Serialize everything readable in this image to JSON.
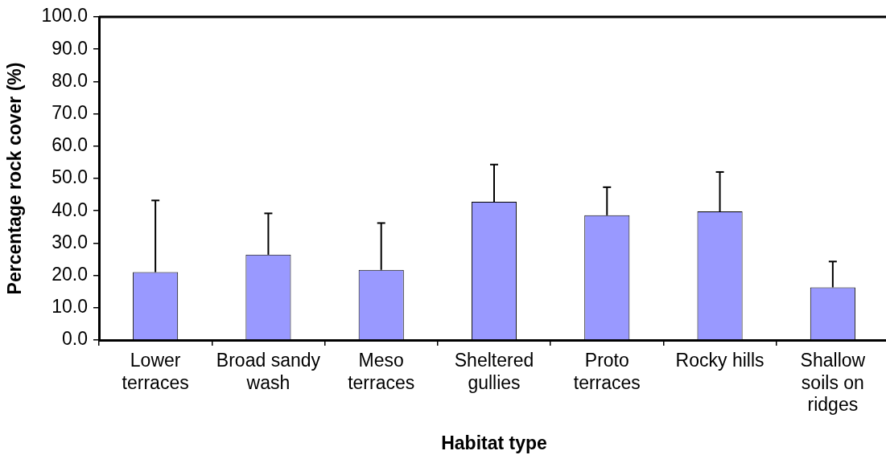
{
  "chart_data": {
    "type": "bar",
    "xlabel": "Habitat type",
    "ylabel": "Percentage rock cover (%)",
    "categories": [
      "Lower terraces",
      "Broad sandy wash",
      "Meso terraces",
      "Sheltered gullies",
      "Proto terraces",
      "Rocky hills",
      "Shallow soils on ridges"
    ],
    "values": [
      21.0,
      26.4,
      21.7,
      42.8,
      38.6,
      39.8,
      16.3
    ],
    "errors": [
      [
        21.0,
        43.2
      ],
      [
        26.4,
        39.2
      ],
      [
        21.7,
        36.2
      ],
      [
        42.8,
        54.3
      ],
      [
        38.6,
        47.3
      ],
      [
        39.8,
        52.0
      ],
      [
        16.3,
        24.3
      ]
    ],
    "color": "#9999ff",
    "ylim": [
      0,
      100
    ],
    "yticks": [
      {
        "value": 0,
        "label": "0.0"
      },
      {
        "value": 10,
        "label": "10.0"
      },
      {
        "value": 20,
        "label": "20.0"
      },
      {
        "value": 30,
        "label": "30.0"
      },
      {
        "value": 40,
        "label": "40.0"
      },
      {
        "value": 50,
        "label": "50.0"
      },
      {
        "value": 60,
        "label": "60.0"
      },
      {
        "value": 70,
        "label": "70.0"
      },
      {
        "value": 80,
        "label": "80.0"
      },
      {
        "value": 90,
        "label": "90.0"
      },
      {
        "value": 100,
        "label": "100.0"
      }
    ],
    "grid": false,
    "legend": false
  }
}
